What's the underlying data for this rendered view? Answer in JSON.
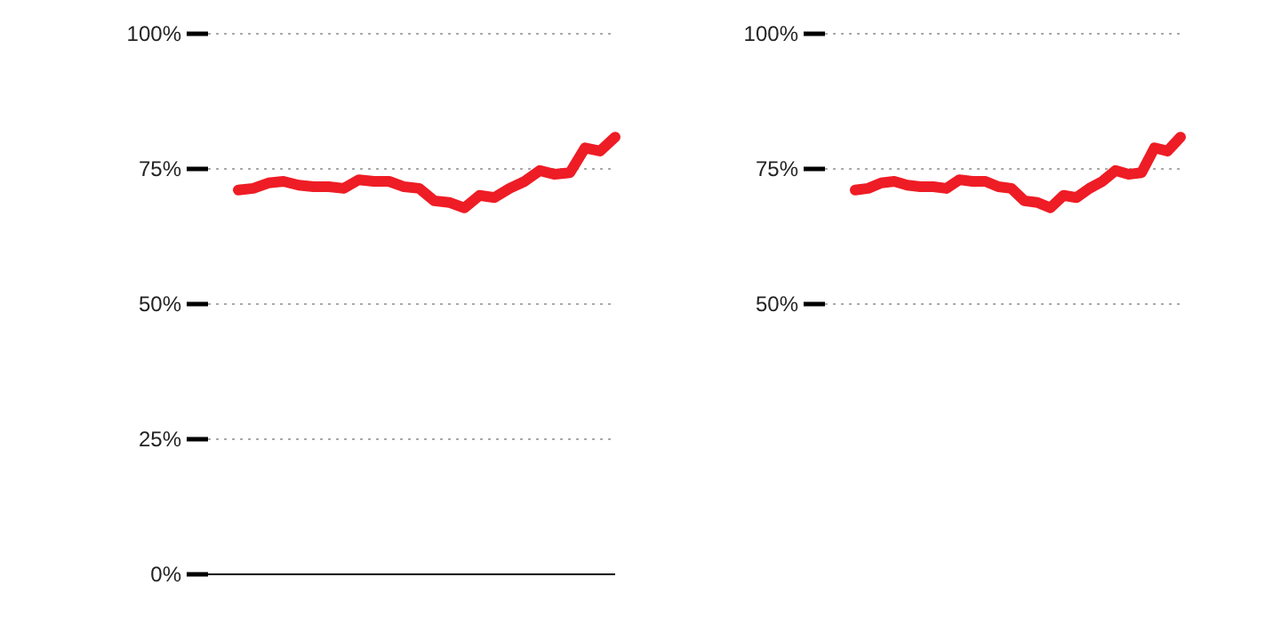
{
  "chart_data": [
    {
      "type": "line",
      "categories": [
        null,
        null,
        null,
        null,
        null,
        null,
        null,
        null,
        null,
        null,
        null,
        null,
        null,
        null,
        null,
        null,
        null,
        null,
        null,
        null,
        null,
        null,
        null,
        null,
        null,
        null
      ],
      "series": [
        {
          "color": "#ee1c25",
          "values": [
            71.1,
            71.4,
            72.4,
            72.7,
            72.0,
            71.7,
            71.7,
            71.4,
            73.0,
            72.7,
            72.7,
            71.7,
            71.4,
            69.1,
            68.8,
            67.8,
            70.1,
            69.7,
            71.4,
            72.7,
            74.7,
            74.0,
            74.3,
            78.9,
            78.3,
            80.9
          ]
        }
      ],
      "ylim": [
        0,
        100
      ],
      "yticks": [
        {
          "value": 0,
          "label": "0%"
        },
        {
          "value": 25,
          "label": "25%"
        },
        {
          "value": 50,
          "label": "50%"
        },
        {
          "value": 75,
          "label": "75%"
        },
        {
          "value": 100,
          "label": "100%"
        }
      ],
      "grid": "y",
      "tick_labels": "y",
      "marker": "none",
      "line_style": "solid"
    },
    {
      "type": "line",
      "categories": [
        null,
        null,
        null,
        null,
        null,
        null,
        null,
        null,
        null,
        null,
        null,
        null,
        null,
        null,
        null,
        null,
        null,
        null,
        null,
        null,
        null,
        null,
        null,
        null,
        null,
        null
      ],
      "series": [
        {
          "color": "#ee1c25",
          "values": [
            71.1,
            71.4,
            72.4,
            72.7,
            72.0,
            71.7,
            71.7,
            71.4,
            73.0,
            72.7,
            72.7,
            71.7,
            71.4,
            69.1,
            68.8,
            67.8,
            70.1,
            69.7,
            71.4,
            72.7,
            74.7,
            74.0,
            74.3,
            78.9,
            78.3,
            80.9
          ]
        }
      ],
      "ylim": [
        50,
        100
      ],
      "yticks": [
        {
          "value": 50,
          "label": "50%"
        },
        {
          "value": 75,
          "label": "75%"
        },
        {
          "value": 100,
          "label": "100%"
        }
      ],
      "grid": "y",
      "tick_labels": "y",
      "marker": "none",
      "line_style": "solid"
    }
  ]
}
